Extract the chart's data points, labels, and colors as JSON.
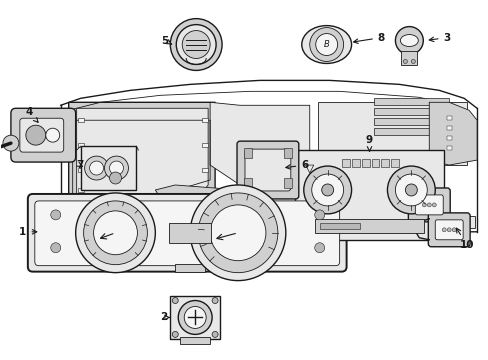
{
  "bg": "#ffffff",
  "lc": "#1a1a1a",
  "gc": "#e8e8e8",
  "gc2": "#d0d0d0",
  "gc3": "#b8b8b8",
  "lw_thin": 0.6,
  "lw_med": 1.0,
  "lw_thick": 1.4,
  "figsize": [
    4.89,
    3.6
  ],
  "dpi": 100
}
